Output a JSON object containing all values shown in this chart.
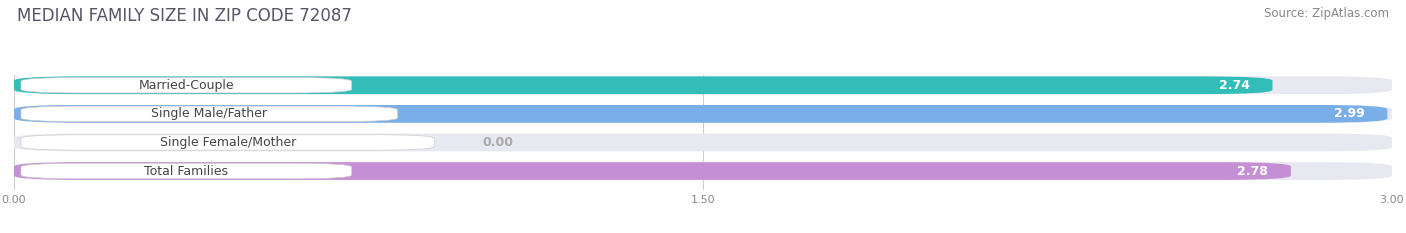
{
  "title": "MEDIAN FAMILY SIZE IN ZIP CODE 72087",
  "source": "Source: ZipAtlas.com",
  "categories": [
    "Married-Couple",
    "Single Male/Father",
    "Single Female/Mother",
    "Total Families"
  ],
  "values": [
    2.74,
    2.99,
    0.0,
    2.78
  ],
  "bar_colors": [
    "#33bdb8",
    "#7aaee8",
    "#f4a8b8",
    "#c48fd4"
  ],
  "bar_bg_color": "#e8e8f0",
  "xlim": [
    0,
    3.0
  ],
  "xticks": [
    0.0,
    1.5,
    3.0
  ],
  "xlabel_labels": [
    "0.00",
    "1.50",
    "3.00"
  ],
  "value_labels": [
    "2.74",
    "2.99",
    "0.00",
    "2.78"
  ],
  "label_color": "#ffffff",
  "zero_label_color": "#aaaaaa",
  "title_fontsize": 12,
  "source_fontsize": 8.5,
  "bar_label_fontsize": 9,
  "category_fontsize": 9,
  "tick_fontsize": 8,
  "bar_height": 0.62,
  "background_color": "#ffffff",
  "grid_color": "#cccccc",
  "title_color": "#555566"
}
